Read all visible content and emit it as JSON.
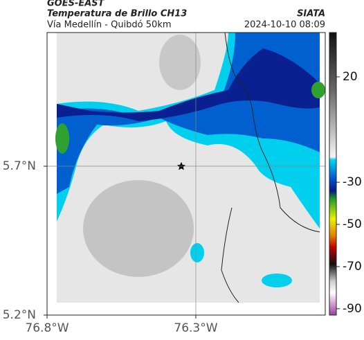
{
  "header": {
    "source": "GOES-EAST",
    "title": "Temperatura de Brillo CH13",
    "subtitle": "Vía Medellín - Quibdó 50km",
    "brand": "SIATA",
    "datetime": "2024-10-10 08:09"
  },
  "map": {
    "xlim": [
      -76.8,
      -75.865
    ],
    "ylim": [
      5.2,
      6.149
    ],
    "xticks": [
      {
        "value": -76.8,
        "label": "76.8°W"
      },
      {
        "value": -76.3,
        "label": "76.3°W"
      }
    ],
    "yticks": [
      {
        "value": 5.2,
        "label": "5.2°N"
      },
      {
        "value": 5.7,
        "label": "5.7°N"
      }
    ],
    "grid": true
  },
  "colorbar": {
    "lim": [
      41,
      -93
    ],
    "ticks": [
      20,
      -30,
      -50,
      -70,
      -90
    ]
  }
}
